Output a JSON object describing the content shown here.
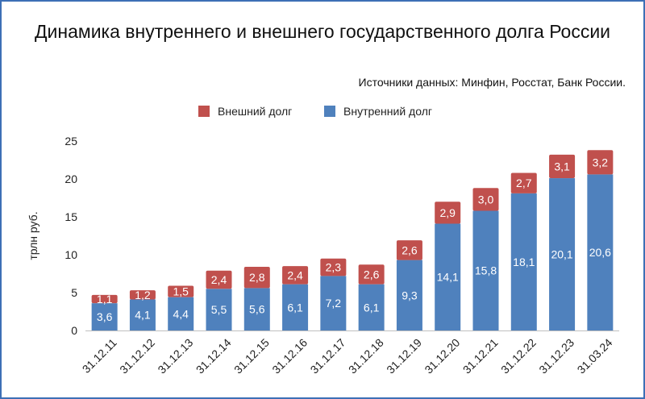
{
  "chart_data": {
    "type": "bar",
    "stacked": true,
    "title": "Динамика внутреннего и внешнего государственного долга России",
    "subtitle": "Источники данных: Минфин, Росстат, Банк России.",
    "xlabel": "",
    "ylabel": "трлн руб.",
    "ylim": [
      0,
      25
    ],
    "yticks": [
      "0",
      "5",
      "10",
      "15",
      "20",
      "25"
    ],
    "grid": false,
    "legend_position": "top-center",
    "categories": [
      "31.12.11",
      "31.12.12",
      "31.12.13",
      "31.12.14",
      "31.12.15",
      "31.12.16",
      "31.12.17",
      "31.12.18",
      "31.12.19",
      "31.12.20",
      "31.12.21",
      "31.12.22",
      "31.12.23",
      "31.03.24"
    ],
    "series": [
      {
        "name": "Внутренний долг",
        "color": "#4f81bd",
        "values": [
          3.6,
          4.1,
          4.4,
          5.5,
          5.6,
          6.1,
          7.2,
          6.1,
          9.3,
          14.1,
          15.8,
          18.1,
          20.1,
          20.6
        ],
        "labels": [
          "3,6",
          "4,1",
          "4,4",
          "5,5",
          "5,6",
          "6,1",
          "7,2",
          "6,1",
          "9,3",
          "14,1",
          "15,8",
          "18,1",
          "20,1",
          "20,6"
        ]
      },
      {
        "name": "Внешний долг",
        "color": "#c0504d",
        "values": [
          1.1,
          1.2,
          1.5,
          2.4,
          2.8,
          2.4,
          2.3,
          2.6,
          2.6,
          2.9,
          3.0,
          2.7,
          3.1,
          3.2
        ],
        "labels": [
          "1,1",
          "1,2",
          "1,5",
          "2,4",
          "2,8",
          "2,4",
          "2,3",
          "2,6",
          "2,6",
          "2,9",
          "3,0",
          "2,7",
          "3,1",
          "3,2"
        ]
      }
    ],
    "legend_order": [
      "Внешний долг",
      "Внутренний долг"
    ]
  }
}
